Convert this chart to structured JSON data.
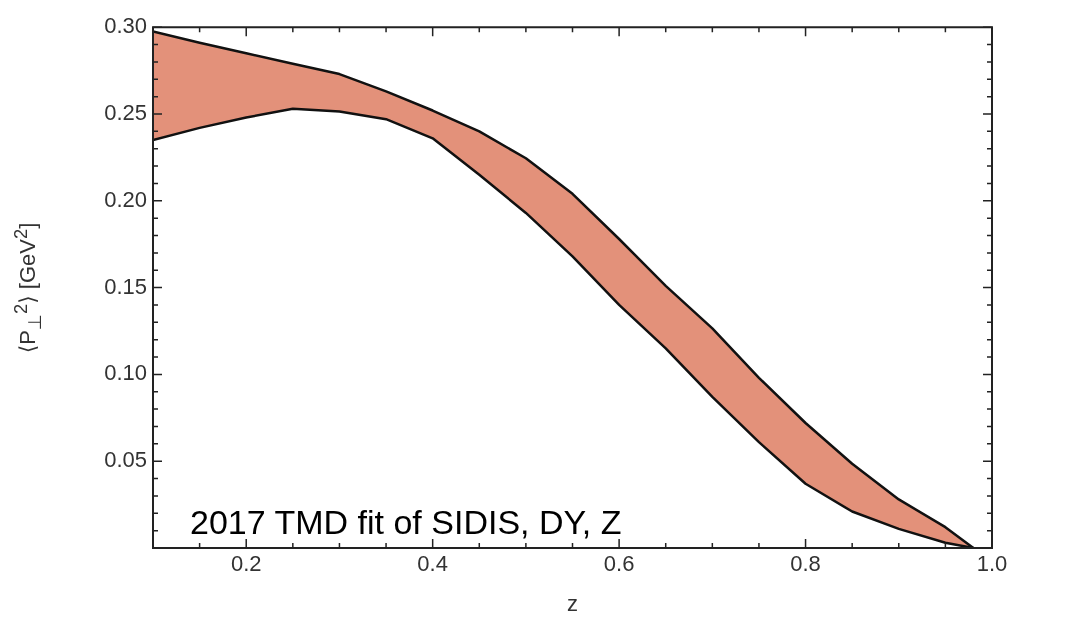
{
  "chart_data": {
    "type": "area",
    "xlabel": "z",
    "ylabel": "⟨P$_{⊥}$$^{2}$⟩ [GeV$^{2}$]",
    "x": [
      0.1,
      0.15,
      0.2,
      0.25,
      0.3,
      0.35,
      0.4,
      0.45,
      0.5,
      0.55,
      0.6,
      0.65,
      0.7,
      0.75,
      0.8,
      0.85,
      0.9,
      0.95,
      0.98
    ],
    "series": [
      {
        "type": "line",
        "color": "#111111",
        "values": [
          0.235,
          0.242,
          0.248,
          0.253,
          0.2515,
          0.247,
          0.236,
          0.215,
          0.193,
          0.168,
          0.14,
          0.115,
          0.087,
          0.061,
          0.037,
          0.021,
          0.011,
          0.003,
          0
        ]
      },
      {
        "type": "area",
        "color": "#e3917a",
        "values": [
          0.2975,
          0.291,
          0.285,
          0.279,
          0.273,
          0.263,
          0.252,
          0.24,
          0.2245,
          0.204,
          0.178,
          0.151,
          0.1265,
          0.098,
          0.072,
          0.0485,
          0.028,
          0.012,
          0
        ]
      }
    ],
    "xlim": [
      0.1,
      1.0
    ],
    "ylim": [
      0,
      0.3
    ],
    "xticks": [
      {
        "value": 0.15,
        "label": null
      },
      0.2,
      {
        "value": 0.25,
        "label": null
      },
      {
        "value": 0.3,
        "label": null
      },
      {
        "value": 0.35,
        "label": null
      },
      0.4,
      {
        "value": 0.45,
        "label": null
      },
      {
        "value": 0.5,
        "label": null
      },
      {
        "value": 0.55,
        "label": null
      },
      0.6,
      {
        "value": 0.65,
        "label": null
      },
      {
        "value": 0.7,
        "label": null
      },
      {
        "value": 0.75,
        "label": null
      },
      0.8,
      {
        "value": 0.85,
        "label": null
      },
      {
        "value": 0.9,
        "label": null
      },
      {
        "value": 0.95,
        "label": null
      },
      {
        "value": 1.0,
        "label": "1.0"
      }
    ],
    "yticks": [
      {
        "value": 0.01,
        "label": null
      },
      {
        "value": 0.02,
        "label": null
      },
      {
        "value": 0.03,
        "label": null
      },
      {
        "value": 0.04,
        "label": null
      },
      0.05,
      {
        "value": 0.06,
        "label": null
      },
      {
        "value": 0.07,
        "label": null
      },
      {
        "value": 0.08,
        "label": null
      },
      {
        "value": 0.09,
        "label": null
      },
      {
        "value": 0.1,
        "label": "0.10"
      },
      {
        "value": 0.11,
        "label": null
      },
      {
        "value": 0.12,
        "label": null
      },
      {
        "value": 0.13,
        "label": null
      },
      {
        "value": 0.14,
        "label": null
      },
      0.15,
      {
        "value": 0.16,
        "label": null
      },
      {
        "value": 0.17,
        "label": null
      },
      {
        "value": 0.18,
        "label": null
      },
      {
        "value": 0.19,
        "label": null
      },
      {
        "value": 0.2,
        "label": "0.20"
      },
      {
        "value": 0.21,
        "label": null
      },
      {
        "value": 0.22,
        "label": null
      },
      {
        "value": 0.23,
        "label": null
      },
      {
        "value": 0.24,
        "label": null
      },
      0.25,
      {
        "value": 0.26,
        "label": null
      },
      {
        "value": 0.27,
        "label": null
      },
      {
        "value": 0.28,
        "label": null
      },
      {
        "value": 0.29,
        "label": null
      },
      {
        "value": 0.3,
        "label": "0.30"
      }
    ],
    "annotations": [
      "2017 TMD fit of SIDIS, DY, Z"
    ]
  }
}
